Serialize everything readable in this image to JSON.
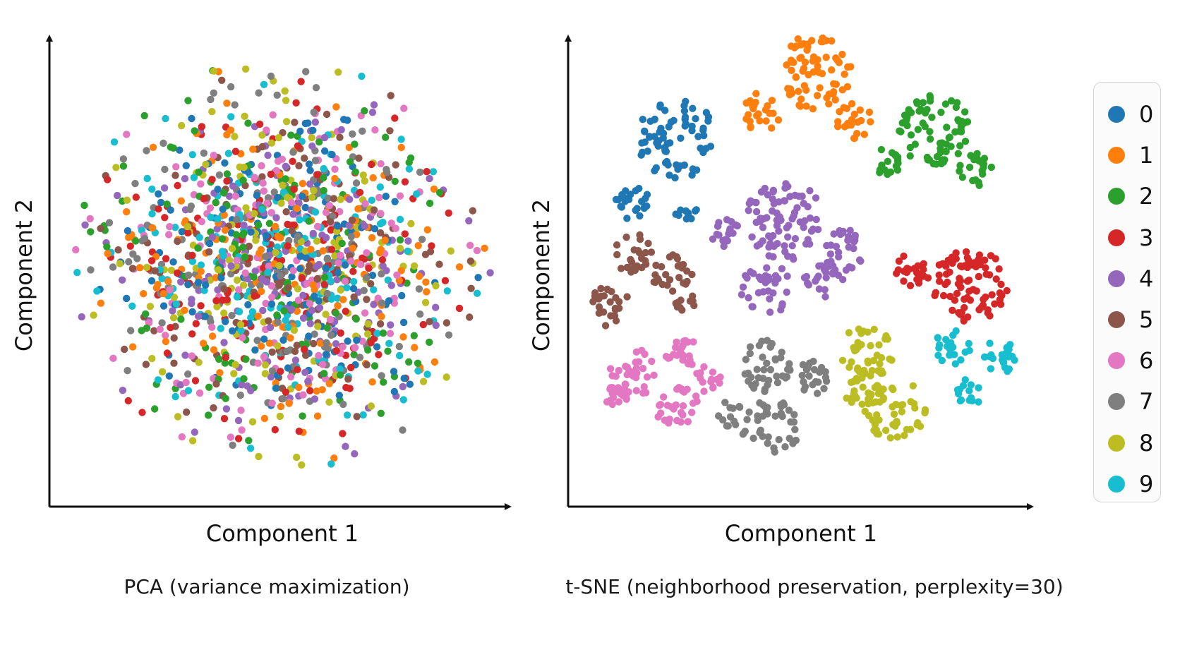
{
  "chart_data": [
    {
      "type": "scatter",
      "title": "PCA (variance maximization)",
      "xlabel": "Component 1",
      "ylabel": "Component 2",
      "grid": false,
      "note": "",
      "series": [
        {
          "name": "0",
          "distribution": {
            "shape": "overlapping-disc",
            "center": [
              0,
              0
            ],
            "std": [
              1.0,
              1.0
            ],
            "count": 150
          }
        },
        {
          "name": "1",
          "distribution": {
            "shape": "overlapping-disc",
            "center": [
              0,
              0
            ],
            "std": [
              1.0,
              1.0
            ],
            "count": 150
          }
        },
        {
          "name": "2",
          "distribution": {
            "shape": "overlapping-disc",
            "center": [
              0,
              0
            ],
            "std": [
              1.0,
              1.0
            ],
            "count": 150
          }
        },
        {
          "name": "3",
          "distribution": {
            "shape": "overlapping-disc",
            "center": [
              0,
              0
            ],
            "std": [
              1.0,
              1.0
            ],
            "count": 150
          }
        },
        {
          "name": "4",
          "distribution": {
            "shape": "overlapping-disc",
            "center": [
              0,
              0
            ],
            "std": [
              1.0,
              1.0
            ],
            "count": 150
          }
        },
        {
          "name": "5",
          "distribution": {
            "shape": "overlapping-disc",
            "center": [
              0,
              0
            ],
            "std": [
              1.0,
              1.0
            ],
            "count": 150
          }
        },
        {
          "name": "6",
          "distribution": {
            "shape": "overlapping-disc",
            "center": [
              0,
              0
            ],
            "std": [
              1.0,
              1.0
            ],
            "count": 150
          }
        },
        {
          "name": "7",
          "distribution": {
            "shape": "overlapping-disc",
            "center": [
              0,
              0
            ],
            "std": [
              1.0,
              1.0
            ],
            "count": 150
          }
        },
        {
          "name": "8",
          "distribution": {
            "shape": "overlapping-disc",
            "center": [
              0,
              0
            ],
            "std": [
              1.0,
              1.0
            ],
            "count": 150
          }
        },
        {
          "name": "9",
          "distribution": {
            "shape": "overlapping-disc",
            "center": [
              0,
              0
            ],
            "std": [
              1.0,
              1.0
            ],
            "count": 150
          }
        }
      ]
    },
    {
      "type": "scatter",
      "title": "t-SNE (neighborhood preservation, perplexity=30)",
      "xlabel": "Component 1",
      "ylabel": "Component 2",
      "grid": false,
      "series": [
        {
          "name": "0",
          "clusters": [
            {
              "center": [
                0.22,
                0.77
              ],
              "radius": 0.09,
              "count": 70
            },
            {
              "center": [
                0.12,
                0.63
              ],
              "radius": 0.04,
              "count": 22
            },
            {
              "center": [
                0.24,
                0.61
              ],
              "radius": 0.025,
              "count": 10
            }
          ]
        },
        {
          "name": "1",
          "clusters": [
            {
              "center": [
                0.53,
                0.92
              ],
              "radius": 0.085,
              "count": 70
            },
            {
              "center": [
                0.41,
                0.83
              ],
              "radius": 0.045,
              "count": 24
            },
            {
              "center": [
                0.62,
                0.81
              ],
              "radius": 0.04,
              "count": 22
            }
          ]
        },
        {
          "name": "2",
          "clusters": [
            {
              "center": [
                0.8,
                0.79
              ],
              "radius": 0.08,
              "count": 70
            },
            {
              "center": [
                0.69,
                0.72
              ],
              "radius": 0.035,
              "count": 18
            },
            {
              "center": [
                0.89,
                0.7
              ],
              "radius": 0.04,
              "count": 20
            }
          ]
        },
        {
          "name": "3",
          "clusters": [
            {
              "center": [
                0.88,
                0.45
              ],
              "radius": 0.085,
              "count": 80
            },
            {
              "center": [
                0.75,
                0.48
              ],
              "radius": 0.04,
              "count": 22
            }
          ]
        },
        {
          "name": "4",
          "clusters": [
            {
              "center": [
                0.46,
                0.59
              ],
              "radius": 0.09,
              "count": 80
            },
            {
              "center": [
                0.33,
                0.56
              ],
              "radius": 0.035,
              "count": 18
            },
            {
              "center": [
                0.6,
                0.52
              ],
              "radius": 0.05,
              "count": 28
            },
            {
              "center": [
                0.42,
                0.44
              ],
              "radius": 0.06,
              "count": 32
            },
            {
              "center": [
                0.55,
                0.46
              ],
              "radius": 0.045,
              "count": 22
            }
          ]
        },
        {
          "name": "5",
          "clusters": [
            {
              "center": [
                0.12,
                0.52
              ],
              "radius": 0.045,
              "count": 24
            },
            {
              "center": [
                0.21,
                0.47
              ],
              "radius": 0.045,
              "count": 26
            },
            {
              "center": [
                0.07,
                0.4
              ],
              "radius": 0.045,
              "count": 24
            },
            {
              "center": [
                0.24,
                0.41
              ],
              "radius": 0.025,
              "count": 10
            }
          ]
        },
        {
          "name": "6",
          "clusters": [
            {
              "center": [
                0.12,
                0.25
              ],
              "radius": 0.06,
              "count": 36
            },
            {
              "center": [
                0.23,
                0.3
              ],
              "radius": 0.04,
              "count": 22
            },
            {
              "center": [
                0.22,
                0.18
              ],
              "radius": 0.05,
              "count": 28
            },
            {
              "center": [
                0.29,
                0.24
              ],
              "radius": 0.03,
              "count": 14
            },
            {
              "center": [
                0.08,
                0.2
              ],
              "radius": 0.03,
              "count": 12
            }
          ]
        },
        {
          "name": "7",
          "clusters": [
            {
              "center": [
                0.42,
                0.27
              ],
              "radius": 0.06,
              "count": 40
            },
            {
              "center": [
                0.52,
                0.24
              ],
              "radius": 0.04,
              "count": 22
            },
            {
              "center": [
                0.43,
                0.13
              ],
              "radius": 0.065,
              "count": 40
            },
            {
              "center": [
                0.34,
                0.16
              ],
              "radius": 0.03,
              "count": 12
            }
          ]
        },
        {
          "name": "8",
          "clusters": [
            {
              "center": [
                0.65,
                0.3
              ],
              "radius": 0.06,
              "count": 40
            },
            {
              "center": [
                0.64,
                0.21
              ],
              "radius": 0.045,
              "count": 22
            },
            {
              "center": [
                0.71,
                0.17
              ],
              "radius": 0.07,
              "count": 46
            }
          ]
        },
        {
          "name": "9",
          "clusters": [
            {
              "center": [
                0.84,
                0.31
              ],
              "radius": 0.04,
              "count": 22
            },
            {
              "center": [
                0.95,
                0.29
              ],
              "radius": 0.04,
              "count": 22
            },
            {
              "center": [
                0.88,
                0.21
              ],
              "radius": 0.03,
              "count": 14
            }
          ]
        }
      ]
    }
  ],
  "colors": {
    "0": "#1f77b4",
    "1": "#ff7f0e",
    "2": "#2ca02c",
    "3": "#d62728",
    "4": "#9467bd",
    "5": "#8c564b",
    "6": "#e377c2",
    "7": "#7f7f7f",
    "8": "#bcbd22",
    "9": "#17becf"
  },
  "legend": {
    "placement": "right",
    "items": [
      "0",
      "1",
      "2",
      "3",
      "4",
      "5",
      "6",
      "7",
      "8",
      "9"
    ]
  }
}
